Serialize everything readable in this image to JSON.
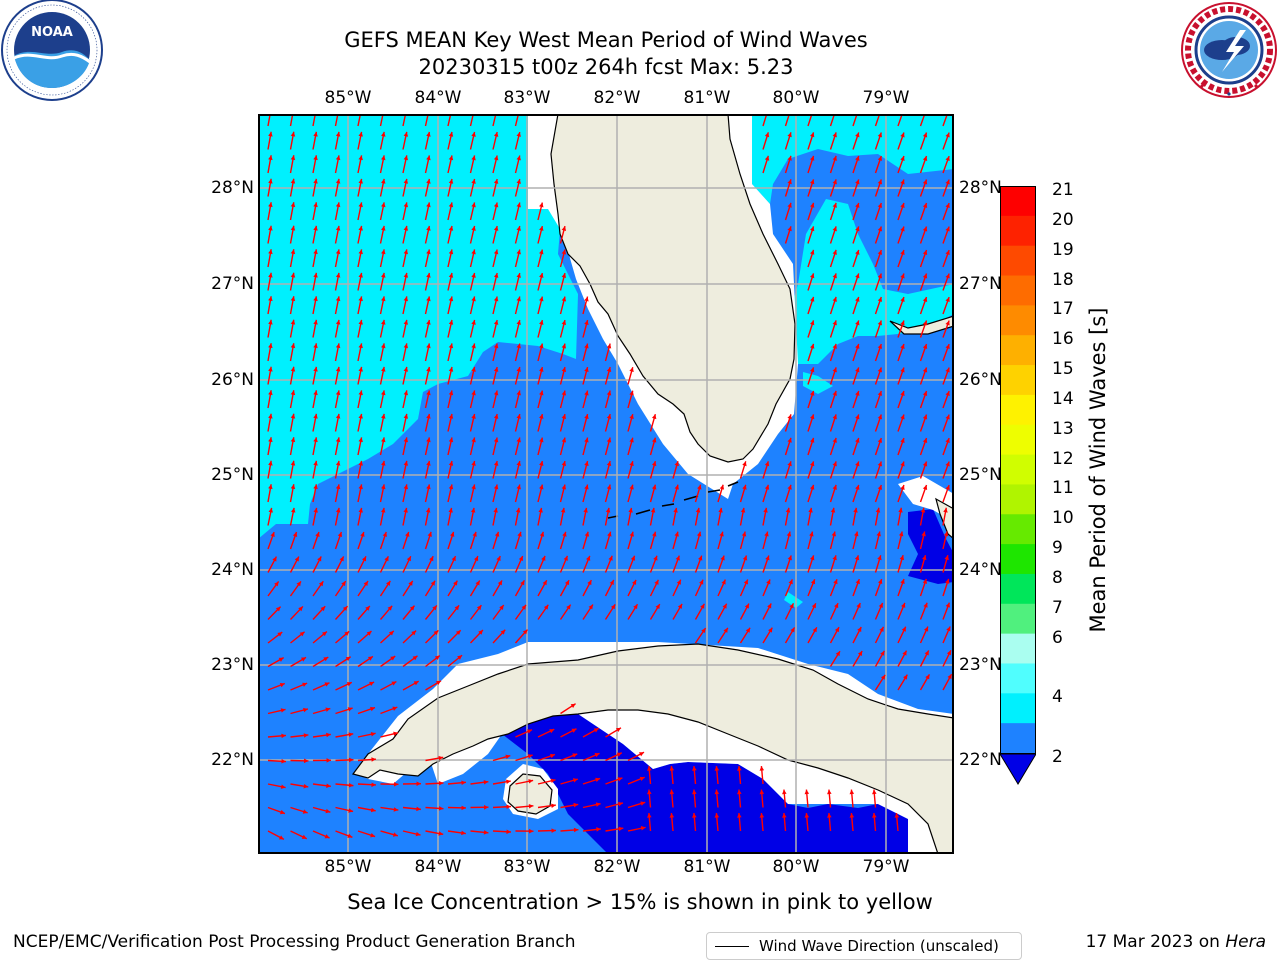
{
  "header": {
    "title_line1": "GEFS MEAN Key West Mean Period of Wind Waves",
    "title_line2": "20230315 t00z 264h fcst   Max: 5.23"
  },
  "logos": {
    "left": {
      "icon": "noaa-logo",
      "text": "NOAA",
      "ring_text": "NATIONAL OCEANIC AND ATMOSPHERIC ADMINISTRATION · U.S. DEPARTMENT OF COMMERCE"
    },
    "right": {
      "icon": "nws-logo",
      "ring_text": "NATIONAL WEATHER SERVICE"
    }
  },
  "map": {
    "lon_labels": [
      "85°W",
      "84°W",
      "83°W",
      "82°W",
      "81°W",
      "80°W",
      "79°W"
    ],
    "lat_labels": [
      "28°N",
      "27°N",
      "26°N",
      "25°N",
      "24°N",
      "23°N",
      "22°N"
    ],
    "extent": {
      "lon_min": -86.0,
      "lon_max": -78.3,
      "lat_min": 21.1,
      "lat_max": 28.75
    },
    "colors": {
      "land": "#eeedde",
      "band_2_4": "#1e82ff",
      "band_4_6": "#00f0fe",
      "below_2": "#0000e6",
      "gridline": "#b0b0b0",
      "arrow": "#ff0000"
    }
  },
  "legend": {
    "label": "Wind Wave Direction (unscaled)"
  },
  "colorbar": {
    "title": "Mean Period of Wind Waves [s]",
    "ticks": [
      "21",
      "20",
      "19",
      "18",
      "17",
      "16",
      "15",
      "14",
      "13",
      "12",
      "11",
      "10",
      "9",
      "8",
      "7",
      "6",
      "4",
      "2"
    ],
    "colors_top_to_bottom": [
      "#fe0000",
      "#fe2200",
      "#fe4a00",
      "#fe6c00",
      "#fe8b00",
      "#feb000",
      "#fed200",
      "#fef200",
      "#eefe00",
      "#d0fe00",
      "#b0f400",
      "#66ea00",
      "#1ee600",
      "#00e65a",
      "#50f07e",
      "#aafef0",
      "#50fefe",
      "#00f0fe",
      "#1e82ff"
    ],
    "under_color": "#0000e6"
  },
  "note": "Sea Ice Concentration > 15% is shown in pink to yellow",
  "footer": {
    "left": "NCEP/EMC/Verification Post Processing Product Generation Branch",
    "right_date": "17 Mar 2023 on ",
    "right_host": "Hera"
  }
}
